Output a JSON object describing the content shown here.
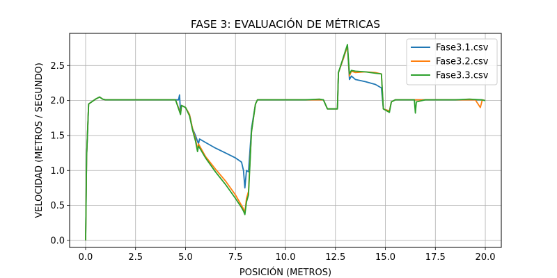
{
  "chart_data": {
    "type": "line",
    "title": "FASE 3: EVALUACIÓN DE MÉTRICAS",
    "xlabel": "POSICIÓN (METROS)",
    "ylabel": "VELOCIDAD (METROS / SEGUNDO)",
    "xlim": [
      -0.8,
      20.8
    ],
    "ylim": [
      -0.1,
      2.96
    ],
    "xticks": [
      "0.0",
      "2.5",
      "5.0",
      "7.5",
      "10.0",
      "12.5",
      "15.0",
      "17.5",
      "20.0"
    ],
    "yticks": [
      "0.0",
      "0.5",
      "1.0",
      "1.5",
      "2.0",
      "2.5"
    ],
    "grid": true,
    "legend_position": "top-right",
    "series": [
      {
        "name": "Fase3.1.csv",
        "color": "#1f77b4",
        "points": [
          [
            0.0,
            0.0
          ],
          [
            0.05,
            1.2
          ],
          [
            0.15,
            1.95
          ],
          [
            0.3,
            1.98
          ],
          [
            0.5,
            2.02
          ],
          [
            0.7,
            2.05
          ],
          [
            0.85,
            2.02
          ],
          [
            1.0,
            2.01
          ],
          [
            2.0,
            2.01
          ],
          [
            3.5,
            2.01
          ],
          [
            4.5,
            2.01
          ],
          [
            4.65,
            2.01
          ],
          [
            4.7,
            2.08
          ],
          [
            4.75,
            1.82
          ],
          [
            4.8,
            1.93
          ],
          [
            5.0,
            1.9
          ],
          [
            5.2,
            1.8
          ],
          [
            5.35,
            1.6
          ],
          [
            5.5,
            1.5
          ],
          [
            5.65,
            1.38
          ],
          [
            5.7,
            1.45
          ],
          [
            6.0,
            1.4
          ],
          [
            6.5,
            1.32
          ],
          [
            7.0,
            1.25
          ],
          [
            7.5,
            1.18
          ],
          [
            7.8,
            1.12
          ],
          [
            7.9,
            1.0
          ],
          [
            7.97,
            0.75
          ],
          [
            8.05,
            1.0
          ],
          [
            8.15,
            0.98
          ],
          [
            8.3,
            1.6
          ],
          [
            8.5,
            1.95
          ],
          [
            8.6,
            2.01
          ],
          [
            9.5,
            2.01
          ],
          [
            11.0,
            2.01
          ],
          [
            11.9,
            2.01
          ],
          [
            12.1,
            1.88
          ],
          [
            12.6,
            1.88
          ],
          [
            12.65,
            2.4
          ],
          [
            12.9,
            2.6
          ],
          [
            13.1,
            2.78
          ],
          [
            13.2,
            2.3
          ],
          [
            13.3,
            2.35
          ],
          [
            13.5,
            2.3
          ],
          [
            14.0,
            2.27
          ],
          [
            14.5,
            2.23
          ],
          [
            14.8,
            2.18
          ],
          [
            14.9,
            1.88
          ],
          [
            15.2,
            1.85
          ],
          [
            15.3,
            1.98
          ],
          [
            15.5,
            2.01
          ],
          [
            17.0,
            2.01
          ],
          [
            18.5,
            2.01
          ],
          [
            19.2,
            2.01
          ],
          [
            19.8,
            2.01
          ],
          [
            20.0,
            2.0
          ]
        ]
      },
      {
        "name": "Fase3.2.csv",
        "color": "#ff7f0e",
        "points": [
          [
            0.0,
            0.0
          ],
          [
            0.05,
            1.2
          ],
          [
            0.15,
            1.95
          ],
          [
            0.3,
            1.98
          ],
          [
            0.5,
            2.02
          ],
          [
            0.7,
            2.05
          ],
          [
            0.85,
            2.02
          ],
          [
            1.0,
            2.01
          ],
          [
            2.0,
            2.01
          ],
          [
            3.5,
            2.01
          ],
          [
            4.5,
            2.01
          ],
          [
            4.75,
            1.82
          ],
          [
            4.8,
            1.93
          ],
          [
            5.0,
            1.9
          ],
          [
            5.2,
            1.8
          ],
          [
            5.35,
            1.6
          ],
          [
            5.5,
            1.45
          ],
          [
            5.6,
            1.3
          ],
          [
            5.65,
            1.38
          ],
          [
            6.0,
            1.2
          ],
          [
            6.5,
            1.02
          ],
          [
            7.0,
            0.85
          ],
          [
            7.5,
            0.65
          ],
          [
            7.8,
            0.5
          ],
          [
            7.9,
            0.45
          ],
          [
            7.97,
            0.4
          ],
          [
            8.05,
            0.6
          ],
          [
            8.15,
            0.7
          ],
          [
            8.3,
            1.55
          ],
          [
            8.5,
            1.95
          ],
          [
            8.6,
            2.01
          ],
          [
            9.5,
            2.01
          ],
          [
            11.0,
            2.01
          ],
          [
            11.9,
            2.01
          ],
          [
            12.1,
            1.88
          ],
          [
            12.6,
            1.88
          ],
          [
            12.65,
            2.4
          ],
          [
            12.9,
            2.6
          ],
          [
            13.1,
            2.78
          ],
          [
            13.2,
            2.35
          ],
          [
            13.3,
            2.42
          ],
          [
            13.5,
            2.4
          ],
          [
            14.0,
            2.41
          ],
          [
            14.5,
            2.4
          ],
          [
            14.8,
            2.38
          ],
          [
            14.9,
            1.88
          ],
          [
            15.2,
            1.85
          ],
          [
            15.3,
            1.98
          ],
          [
            15.5,
            2.01
          ],
          [
            17.0,
            2.01
          ],
          [
            18.5,
            2.01
          ],
          [
            19.5,
            2.01
          ],
          [
            19.75,
            1.9
          ],
          [
            19.85,
            2.01
          ],
          [
            20.0,
            2.0
          ]
        ]
      },
      {
        "name": "Fase3.3.csv",
        "color": "#2ca02c",
        "points": [
          [
            0.0,
            0.0
          ],
          [
            0.05,
            1.2
          ],
          [
            0.15,
            1.95
          ],
          [
            0.3,
            1.98
          ],
          [
            0.5,
            2.02
          ],
          [
            0.7,
            2.05
          ],
          [
            0.85,
            2.02
          ],
          [
            1.0,
            2.01
          ],
          [
            2.0,
            2.01
          ],
          [
            3.5,
            2.01
          ],
          [
            4.5,
            2.01
          ],
          [
            4.75,
            1.8
          ],
          [
            4.8,
            1.93
          ],
          [
            5.0,
            1.9
          ],
          [
            5.2,
            1.78
          ],
          [
            5.35,
            1.58
          ],
          [
            5.5,
            1.42
          ],
          [
            5.6,
            1.27
          ],
          [
            5.65,
            1.35
          ],
          [
            6.0,
            1.18
          ],
          [
            6.5,
            0.98
          ],
          [
            7.0,
            0.8
          ],
          [
            7.5,
            0.6
          ],
          [
            7.8,
            0.47
          ],
          [
            7.9,
            0.42
          ],
          [
            7.97,
            0.37
          ],
          [
            8.05,
            0.55
          ],
          [
            8.15,
            0.65
          ],
          [
            8.3,
            1.55
          ],
          [
            8.5,
            1.95
          ],
          [
            8.6,
            2.01
          ],
          [
            9.5,
            2.01
          ],
          [
            11.0,
            2.01
          ],
          [
            11.7,
            2.02
          ],
          [
            11.9,
            2.01
          ],
          [
            12.1,
            1.88
          ],
          [
            12.6,
            1.88
          ],
          [
            12.65,
            2.4
          ],
          [
            12.9,
            2.62
          ],
          [
            13.1,
            2.8
          ],
          [
            13.2,
            2.38
          ],
          [
            13.3,
            2.43
          ],
          [
            13.5,
            2.42
          ],
          [
            14.0,
            2.41
          ],
          [
            14.5,
            2.39
          ],
          [
            14.8,
            2.38
          ],
          [
            14.9,
            1.88
          ],
          [
            15.2,
            1.83
          ],
          [
            15.3,
            1.98
          ],
          [
            15.5,
            2.01
          ],
          [
            16.45,
            2.01
          ],
          [
            16.5,
            1.82
          ],
          [
            16.55,
            1.98
          ],
          [
            17.0,
            2.01
          ],
          [
            18.5,
            2.01
          ],
          [
            19.2,
            2.02
          ],
          [
            19.8,
            2.01
          ],
          [
            20.0,
            2.0
          ]
        ]
      }
    ]
  }
}
